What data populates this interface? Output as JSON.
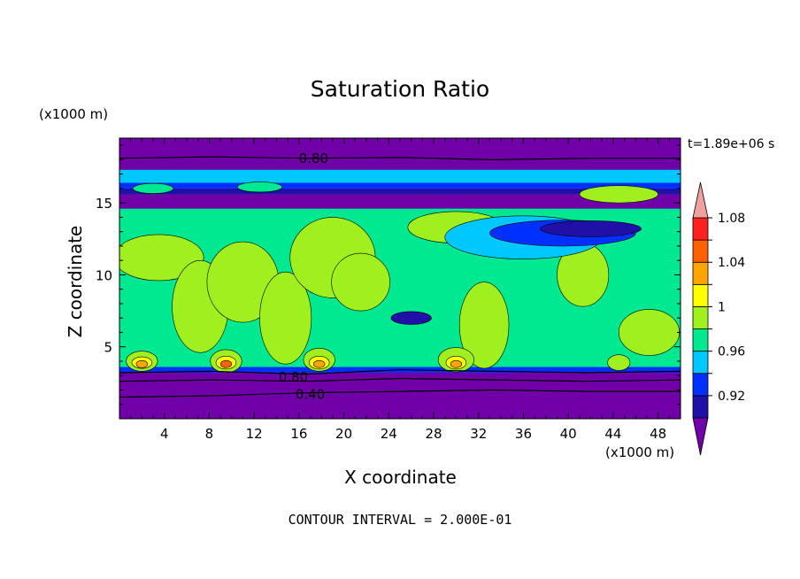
{
  "chart_data": {
    "type": "heatmap",
    "title": "Saturation Ratio",
    "xlabel": "X coordinate",
    "ylabel": "Z coordinate",
    "x_unit": "(x1000 m)",
    "y_unit": "(x1000 m)",
    "time_label": "t=1.89e+06 s",
    "footer": "CONTOUR INTERVAL = 2.000E-01",
    "xlim": [
      0,
      50
    ],
    "ylim": [
      0,
      19.5
    ],
    "x_ticks": [
      "4",
      "8",
      "12",
      "16",
      "20",
      "24",
      "28",
      "32",
      "36",
      "40",
      "44",
      "48"
    ],
    "y_ticks": [
      "5",
      "10",
      "15"
    ],
    "contour_labels": [
      {
        "text": "0.80",
        "x": 17.3,
        "z": 18.1
      },
      {
        "text": "0.80",
        "x": 15.5,
        "z": 2.9
      },
      {
        "text": "0.40",
        "x": 17.0,
        "z": 1.7
      }
    ],
    "colorbar": {
      "levels": [
        0.92,
        0.94,
        0.96,
        0.98,
        1.0,
        1.02,
        1.04,
        1.06,
        1.08
      ],
      "tick_labels": [
        "0.92",
        "0.96",
        "1",
        "1.04",
        "1.08"
      ],
      "tick_values": [
        0.92,
        0.96,
        1.0,
        1.04,
        1.08
      ],
      "colors": [
        "#7000a8",
        "#2010a8",
        "#0030ff",
        "#00c8ff",
        "#00e890",
        "#a0f020",
        "#ffff00",
        "#ffa500",
        "#ff6000",
        "#ff2020",
        "#f0a0a0"
      ]
    },
    "bands": [
      {
        "z0": 0.0,
        "z1": 3.2,
        "color": "#7000a8"
      },
      {
        "z0": 3.2,
        "z1": 3.6,
        "color": "#0030ff"
      },
      {
        "z0": 3.6,
        "z1": 14.6,
        "color": "#00e890"
      },
      {
        "z0": 14.6,
        "z1": 15.6,
        "color": "#7000a8"
      },
      {
        "z0": 15.6,
        "z1": 16.0,
        "color": "#2010a8"
      },
      {
        "z0": 16.0,
        "z1": 16.4,
        "color": "#0030ff"
      },
      {
        "z0": 16.4,
        "z1": 17.3,
        "color": "#00c8ff"
      },
      {
        "z0": 17.3,
        "z1": 19.5,
        "color": "#7000a8"
      }
    ],
    "regions": [
      {
        "x": 3.5,
        "z": 11.2,
        "rx": 4.0,
        "rz": 1.6,
        "color": "#a0f020"
      },
      {
        "x": 7.2,
        "z": 7.8,
        "rx": 2.5,
        "rz": 3.2,
        "color": "#a0f020"
      },
      {
        "x": 11.0,
        "z": 9.5,
        "rx": 3.2,
        "rz": 2.8,
        "color": "#a0f020"
      },
      {
        "x": 14.8,
        "z": 7.0,
        "rx": 2.3,
        "rz": 3.2,
        "color": "#a0f020"
      },
      {
        "x": 19.0,
        "z": 11.2,
        "rx": 3.8,
        "rz": 2.8,
        "color": "#a0f020"
      },
      {
        "x": 21.5,
        "z": 9.5,
        "rx": 2.6,
        "rz": 2.0,
        "color": "#a0f020"
      },
      {
        "x": 32.5,
        "z": 6.5,
        "rx": 2.2,
        "rz": 3.0,
        "color": "#a0f020"
      },
      {
        "x": 41.3,
        "z": 10.0,
        "rx": 2.3,
        "rz": 2.2,
        "color": "#a0f020"
      },
      {
        "x": 47.2,
        "z": 6.0,
        "rx": 2.7,
        "rz": 1.6,
        "color": "#a0f020"
      },
      {
        "x": 30.0,
        "z": 13.3,
        "rx": 4.3,
        "rz": 1.1,
        "color": "#a0f020"
      },
      {
        "x": 44.5,
        "z": 15.6,
        "rx": 3.5,
        "rz": 0.6,
        "color": "#a0f020"
      },
      {
        "x": 3.0,
        "z": 16.0,
        "rx": 1.8,
        "rz": 0.35,
        "color": "#00e890"
      },
      {
        "x": 12.5,
        "z": 16.1,
        "rx": 2.0,
        "rz": 0.35,
        "color": "#00e890"
      },
      {
        "x": 36.0,
        "z": 12.6,
        "rx": 7.0,
        "rz": 1.5,
        "color": "#00c8ff"
      },
      {
        "x": 39.5,
        "z": 12.9,
        "rx": 6.5,
        "rz": 0.9,
        "color": "#0030ff"
      },
      {
        "x": 42.0,
        "z": 13.2,
        "rx": 4.5,
        "rz": 0.55,
        "color": "#2010a8"
      },
      {
        "x": 26.0,
        "z": 7.0,
        "rx": 1.8,
        "rz": 0.45,
        "color": "#2010a8"
      },
      {
        "x": 30.0,
        "z": 4.1,
        "rx": 1.6,
        "rz": 0.85,
        "color": "#a0f020"
      },
      {
        "x": 2.0,
        "z": 4.0,
        "rx": 1.4,
        "rz": 0.7,
        "color": "#a0f020"
      },
      {
        "x": 2.0,
        "z": 3.9,
        "rx": 0.9,
        "rz": 0.4,
        "color": "#ffff00"
      },
      {
        "x": 2.0,
        "z": 3.8,
        "rx": 0.5,
        "rz": 0.25,
        "color": "#ffa500"
      },
      {
        "x": 9.5,
        "z": 4.0,
        "rx": 1.4,
        "rz": 0.8,
        "color": "#a0f020"
      },
      {
        "x": 9.5,
        "z": 3.9,
        "rx": 0.9,
        "rz": 0.45,
        "color": "#ffff00"
      },
      {
        "x": 9.5,
        "z": 3.8,
        "rx": 0.5,
        "rz": 0.25,
        "color": "#ff6000"
      },
      {
        "x": 17.8,
        "z": 4.1,
        "rx": 1.4,
        "rz": 0.8,
        "color": "#a0f020"
      },
      {
        "x": 17.8,
        "z": 3.9,
        "rx": 0.9,
        "rz": 0.45,
        "color": "#ffff00"
      },
      {
        "x": 17.8,
        "z": 3.8,
        "rx": 0.5,
        "rz": 0.25,
        "color": "#ffa500"
      },
      {
        "x": 30.0,
        "z": 3.9,
        "rx": 0.9,
        "rz": 0.45,
        "color": "#ffff00"
      },
      {
        "x": 30.0,
        "z": 3.8,
        "rx": 0.5,
        "rz": 0.25,
        "color": "#ffa500"
      },
      {
        "x": 44.5,
        "z": 3.9,
        "rx": 1.0,
        "rz": 0.55,
        "color": "#a0f020"
      }
    ],
    "contour_lines": [
      {
        "z": [
          18.1,
          18.2,
          18.1,
          18.15,
          18.0,
          18.1,
          18.1
        ]
      },
      {
        "z": [
          3.2,
          3.3,
          3.1,
          3.4,
          3.3,
          3.2,
          3.3
        ]
      },
      {
        "z": [
          2.6,
          2.7,
          2.6,
          2.8,
          2.7,
          2.6,
          2.7
        ]
      },
      {
        "z": [
          1.5,
          1.6,
          1.8,
          1.9,
          2.0,
          1.9,
          1.9
        ]
      }
    ]
  }
}
